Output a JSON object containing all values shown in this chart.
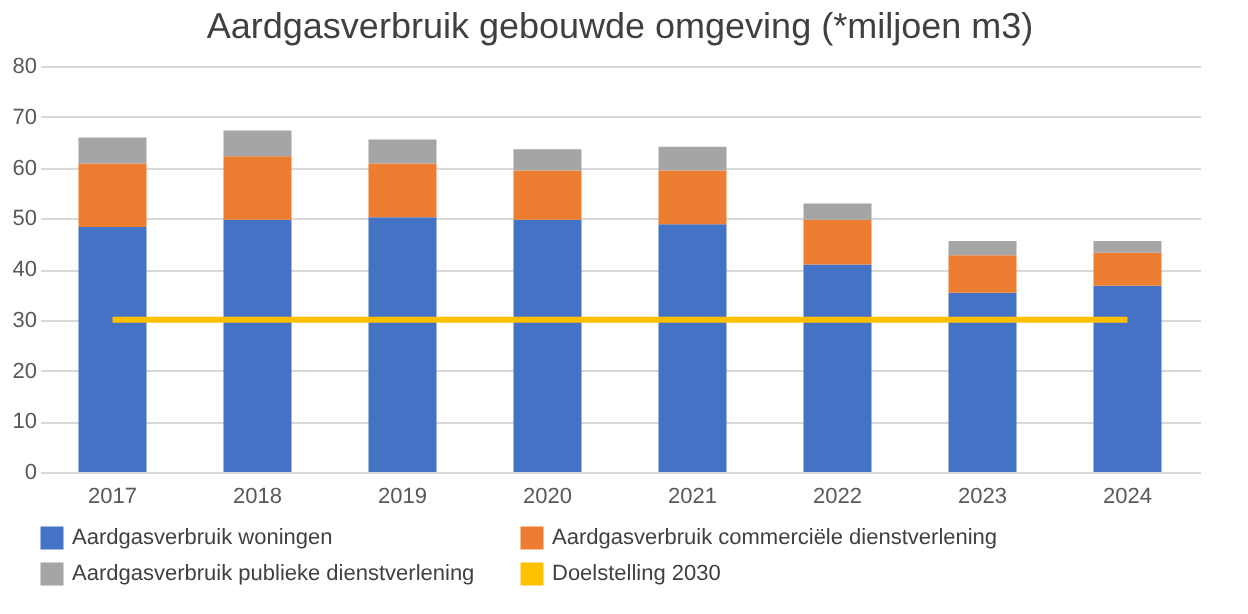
{
  "chart_data": {
    "type": "bar",
    "title": "Aardgasverbruik gebouwde omgeving (*miljoen m3)",
    "categories": [
      "2017",
      "2018",
      "2019",
      "2020",
      "2021",
      "2022",
      "2023",
      "2024"
    ],
    "stacked": true,
    "series": [
      {
        "name": "Aardgasverbruik woningen",
        "color": "#4472c4",
        "values": [
          48.3,
          49.7,
          50.2,
          49.7,
          48.8,
          40.9,
          35.3,
          36.7
        ]
      },
      {
        "name": "Aardgasverbruik commerciële dienstverlening",
        "color": "#ed7d31",
        "values": [
          12.5,
          12.5,
          10.6,
          9.7,
          10.6,
          8.8,
          7.4,
          6.5
        ]
      },
      {
        "name": "Aardgasverbruik publieke dienstverlening",
        "color": "#a5a5a5",
        "values": [
          5.1,
          5.1,
          4.7,
          4.2,
          4.7,
          3.2,
          2.8,
          2.3
        ]
      },
      {
        "name": "Doelstelling 2030",
        "color": "#ffc000",
        "type": "line",
        "values": [
          30,
          30,
          30,
          30,
          30,
          30,
          30,
          30
        ]
      }
    ],
    "ylim": [
      0,
      80
    ],
    "yticks": [
      0,
      10,
      20,
      30,
      40,
      50,
      60,
      70,
      80
    ],
    "grid": "y",
    "legend": "bottom",
    "marker": "none",
    "line_style": "solid"
  }
}
